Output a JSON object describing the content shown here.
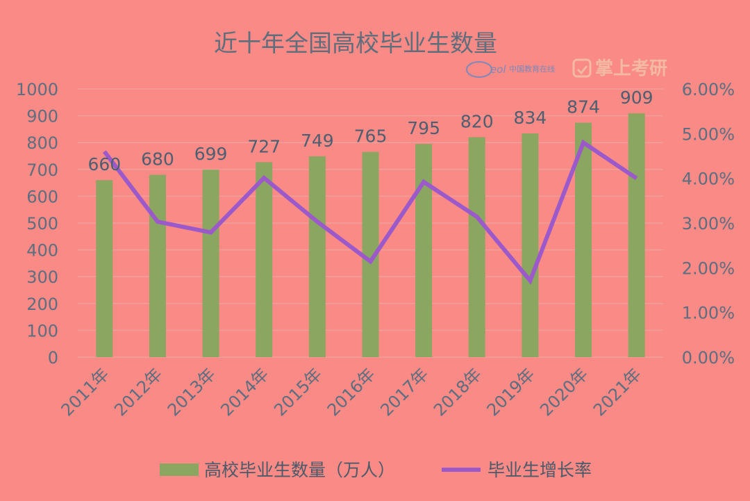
{
  "chart_data": {
    "type": "bar+line",
    "title": "近十年全国高校毕业生数量",
    "categories": [
      "2011年",
      "2012年",
      "2013年",
      "2014年",
      "2015年",
      "2016年",
      "2017年",
      "2018年",
      "2019年",
      "2020年",
      "2021年"
    ],
    "series": [
      {
        "name": "高校毕业生数量（万人）",
        "type": "bar",
        "axis": "left",
        "values": [
          660,
          680,
          699,
          727,
          749,
          765,
          795,
          820,
          834,
          874,
          909
        ],
        "color": "#8aa660"
      },
      {
        "name": "毕业生增长率",
        "type": "line",
        "axis": "right",
        "values": [
          4.6,
          3.03,
          2.79,
          4.01,
          3.03,
          2.14,
          3.92,
          3.14,
          1.71,
          4.8,
          4.0
        ],
        "color": "#9b59c9"
      }
    ],
    "y_left": {
      "lim": [
        0,
        1000
      ],
      "ticks": [
        "0",
        "100",
        "200",
        "300",
        "400",
        "500",
        "600",
        "700",
        "800",
        "900",
        "1000"
      ]
    },
    "y_right": {
      "lim": [
        0,
        6
      ],
      "ticks": [
        "0.00%",
        "1.00%",
        "2.00%",
        "3.00%",
        "4.00%",
        "5.00%",
        "6.00%"
      ]
    },
    "grid": true,
    "legend_position": "bottom"
  },
  "watermark": {
    "logo_text": "eol",
    "site_text": "中国教育在线",
    "brand_text": "掌上考研"
  },
  "colors": {
    "background": "#f98a86",
    "grid": "#f0a09c",
    "bar": "#8aa660",
    "line": "#9b59c9"
  }
}
